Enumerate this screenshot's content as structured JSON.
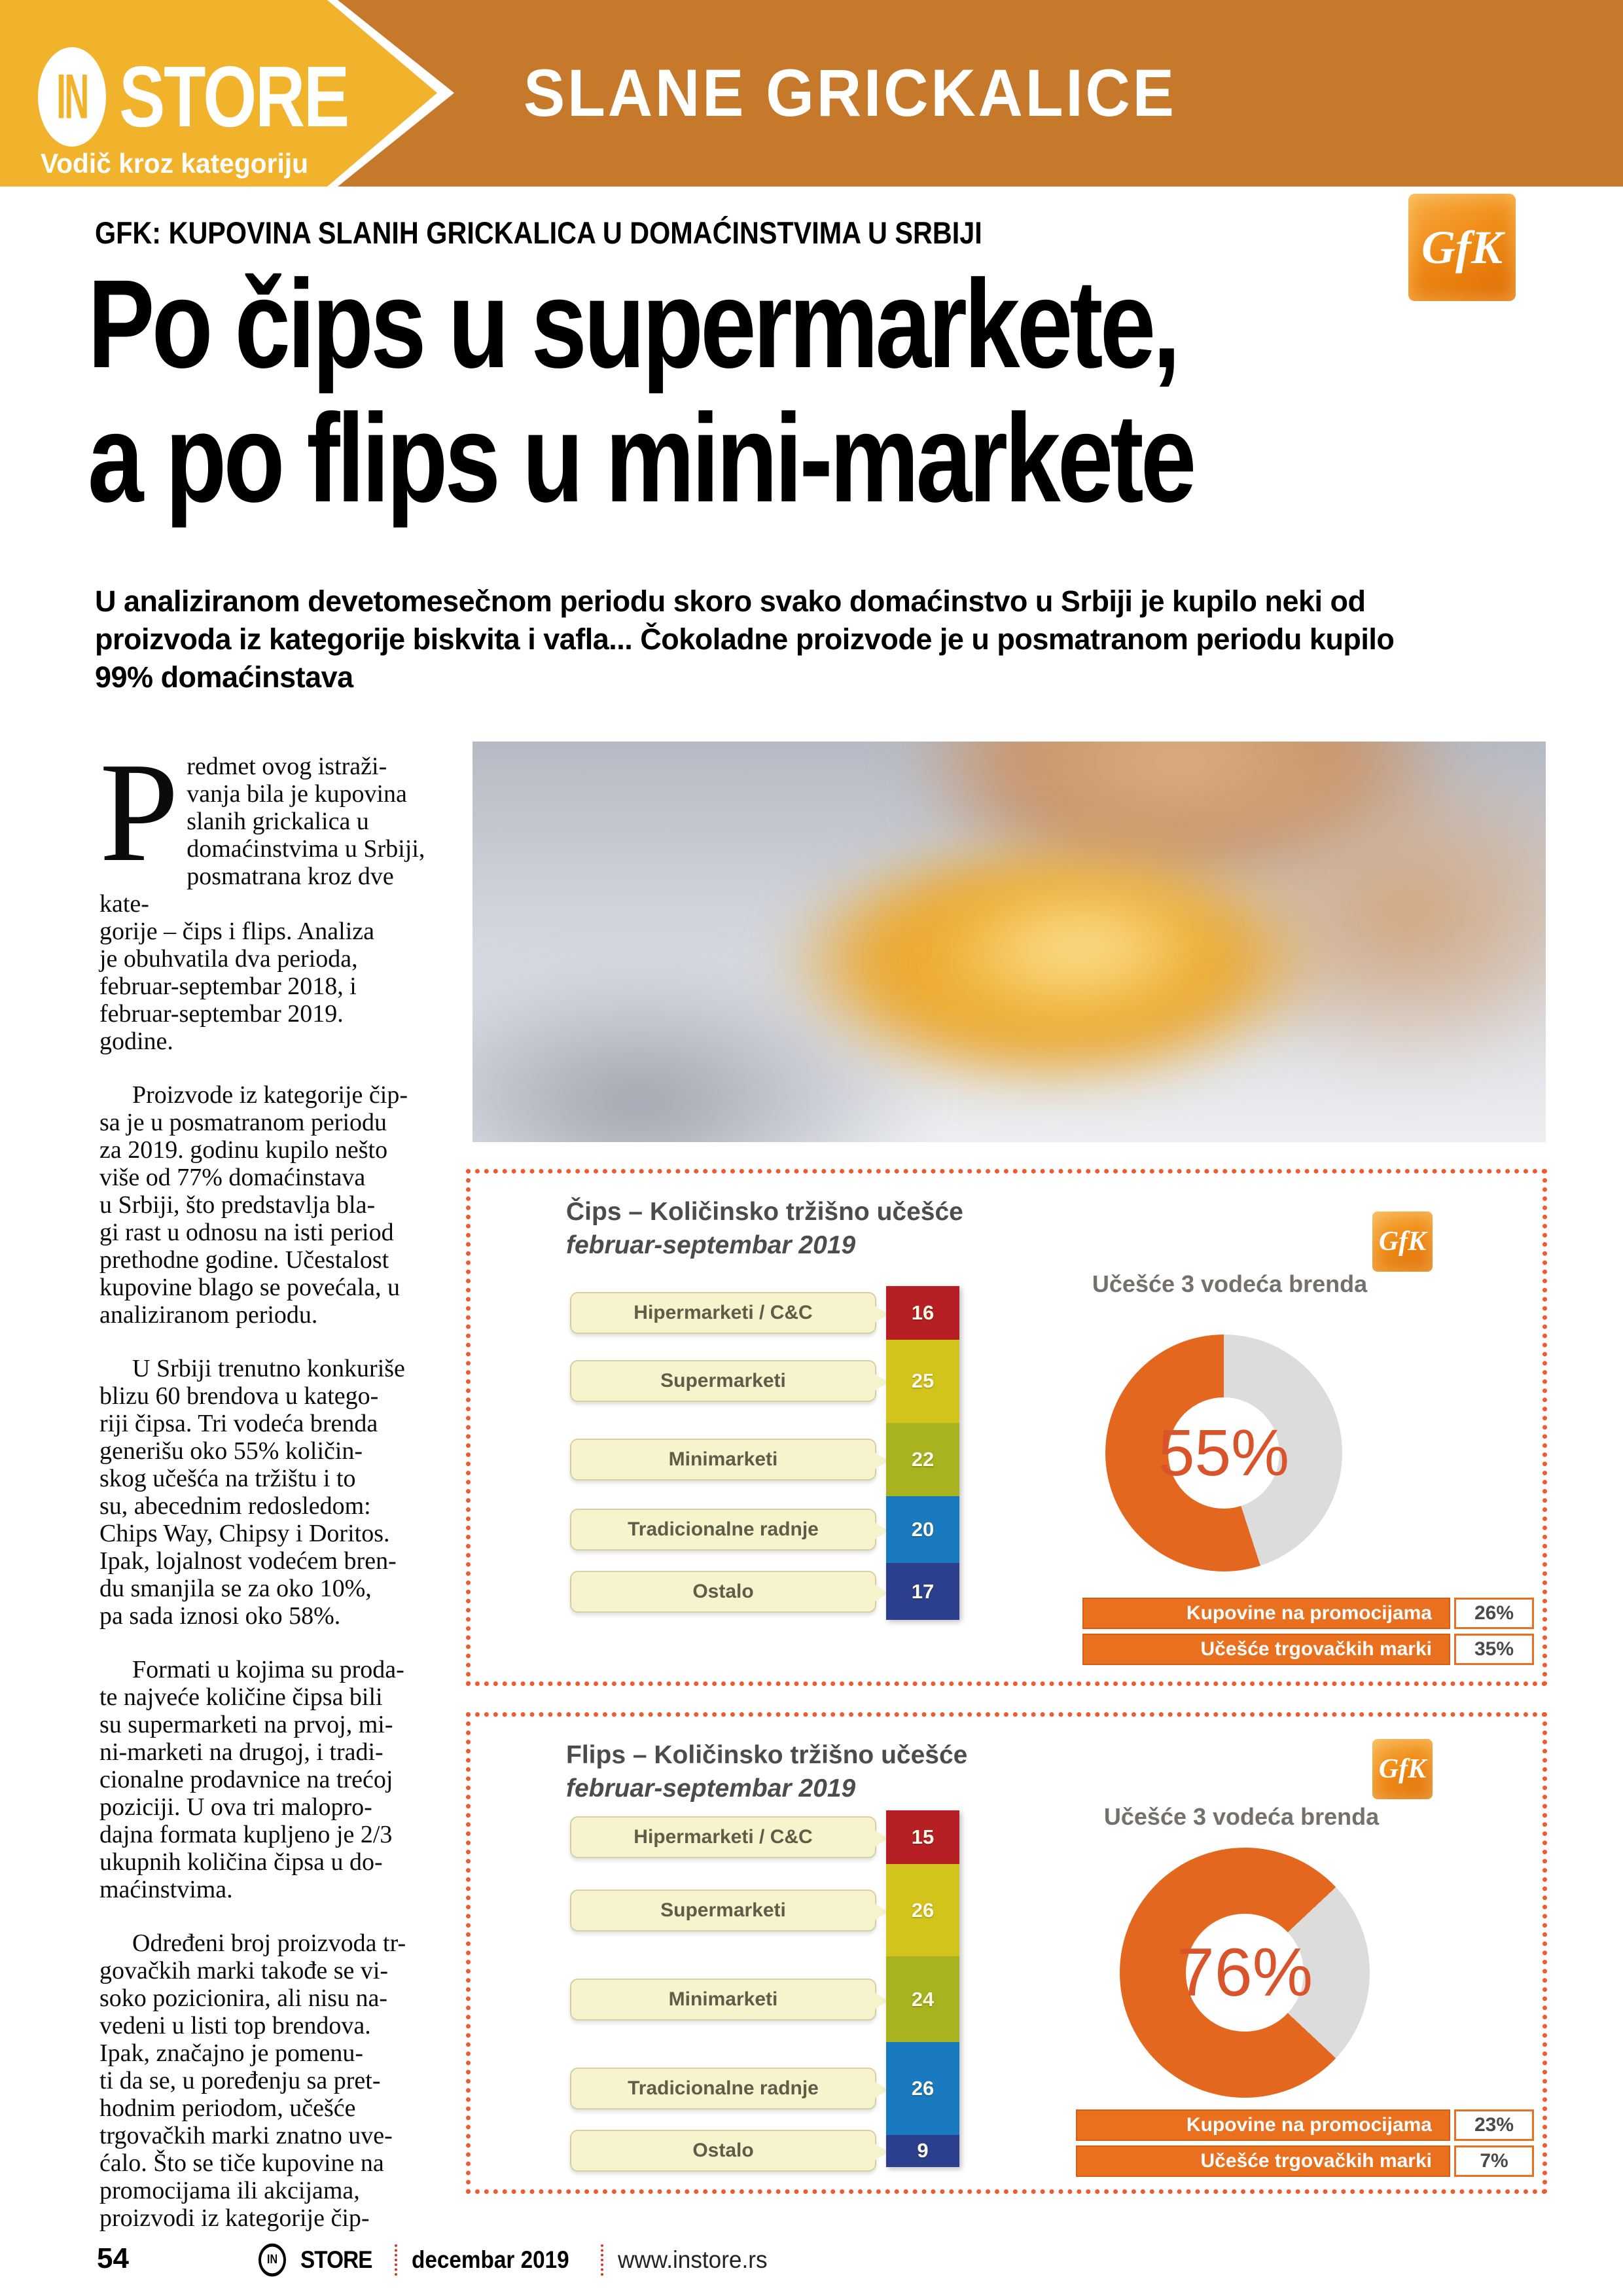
{
  "header": {
    "brand_badge": "IN",
    "brand": "STORE",
    "tagline": "Vodič kroz kategoriju",
    "section": "SLANE GRICKALICE",
    "yellow": "#f1b22c",
    "orange": "#c6792a"
  },
  "kicker": "GFK: KUPOVINA SLANIH GRICKALICA U DOMAĆINSTVIMA U SRBIJI",
  "gfk": "GfK",
  "headline": {
    "line1": "Po čips u supermarkete,",
    "line2": "a po flips u mini-markete"
  },
  "intro": "U analiziranom devetomesečnom periodu skoro svako domaćinstvo u Srbiji je kupilo neki od\nproizvoda iz kategorije biskvita i vafla... Čokoladne proizvode je u posmatranom periodu kupilo\n99% domaćinstava",
  "article": {
    "dropcap": "P",
    "p1": "redmet ovog istraži-\nvanja bila je kupovina\nslanih grickalica u\ndomaćinstvima u Srbiji,\nposmatrana kroz dve kate-\ngorije – čips i flips. Analiza\nje obuhvatila dva perioda,\nfebruar-septembar 2018, i\nfebruar-septembar 2019.\ngodine.",
    "p2": "Proizvode iz kategorije čip-\nsa je u posmatranom periodu\nza 2019. godinu kupilo nešto\nviše od 77% domaćinstava\nu Srbiji, što predstavlja bla-\ngi rast u odnosu na isti period\nprethodne godine. Učestalost\nkupovine blago se povećala, u\nanaliziranom periodu.",
    "p3": "U Srbiji trenutno konkuriše\nblizu 60 brendova u katego-\nriji čipsa. Tri vodeća brenda\ngenerišu oko 55% količin-\nskog učešća na tržištu i to\nsu, abecednim redosledom:\nChips Way, Chipsy i Doritos.\nIpak, lojalnost vodećem bren-\ndu smanjila se za oko 10%,\npa sada iznosi oko 58%.",
    "p4": "Formati u kojima su proda-\nte najveće količine čipsa bili\nsu supermarketi na prvoj, mi-\nni-marketi na drugoj, i tradi-\ncionalne prodavnice na trećoj\npoziciji. U ova tri malopro-\ndajna formata kupljeno je 2/3\nukupnih količina čipsa u do-\nmaćinstvima.",
    "p5": "Određeni broj proizvoda tr-\ngovačkih marki takođe se vi-\nsoko pozicionira, ali nisu na-\nvedeni u listi top brendova.\nIpak, značajno je pomenu-\nti da se, u poređenju sa pret-\nhodnim periodom, učešće\ntrgovačkih marki znatno uve-\nćalo. Što se tiče kupovine na\npromocijama ili akcijama,\nproizvodi iz kategorije čip-"
  },
  "chart_data": [
    {
      "type": "stacked-bar+donut",
      "title": "Čips – Količinsko tržišno učešće",
      "subtitle": "februar-septembar 2019",
      "unit": "%",
      "categories": [
        "Hipermarketi / C&C",
        "Supermarketi",
        "Minimarketi",
        "Tradicionalne radnje",
        "Ostalo"
      ],
      "values": [
        16,
        25,
        22,
        20,
        17
      ],
      "bar_colors": [
        "#b62025",
        "#d3c41c",
        "#a9b21f",
        "#1a7ac0",
        "#2c3f8d"
      ],
      "donut": {
        "label": "Učešće 3 vodeća brenda",
        "text": "55%",
        "share": 55,
        "orange": "#e4671f",
        "gray": "#dcdcdc",
        "gray_from": 0,
        "gray_to": 45
      },
      "rows": [
        {
          "label": "Kupovine na promocijama",
          "value": "26%"
        },
        {
          "label": "Učešće trgovačkih marki",
          "value": "35%"
        }
      ]
    },
    {
      "type": "stacked-bar+donut",
      "title": "Flips – Količinsko tržišno učešće",
      "subtitle": "februar-septembar 2019",
      "unit": "%",
      "categories": [
        "Hipermarketi / C&C",
        "Supermarketi",
        "Minimarketi",
        "Tradicionalne radnje",
        "Ostalo"
      ],
      "values": [
        15,
        26,
        24,
        26,
        9
      ],
      "bar_colors": [
        "#b62025",
        "#d3c41c",
        "#a9b21f",
        "#1a7ac0",
        "#2c3f8d"
      ],
      "donut": {
        "label": "Učešće 3 vodeća brenda",
        "text": "76%",
        "share": 76,
        "orange": "#e4671f",
        "gray": "#dcdcdc",
        "gray_from": 13,
        "gray_to": 37
      },
      "rows": [
        {
          "label": "Kupovine na promocijama",
          "value": "23%"
        },
        {
          "label": "Učešće trgovačkih marki",
          "value": "7%"
        }
      ]
    }
  ],
  "footer": {
    "page": "54",
    "badge": "IN",
    "brand": "STORE",
    "date": "decembar 2019",
    "url": "www.instore.rs"
  }
}
